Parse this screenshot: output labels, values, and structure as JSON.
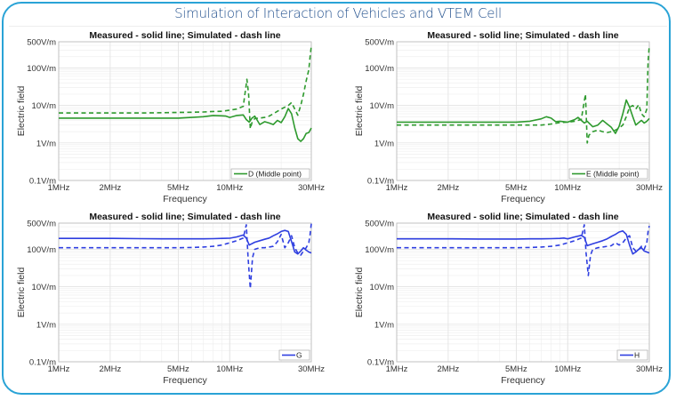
{
  "page": {
    "title": "Simulation of Interaction of Vehicles and VTEM Cell",
    "frame_color": "#2aa3d6",
    "title_color": "#1f4e8c"
  },
  "chart_data": [
    {
      "id": "D",
      "type": "line",
      "title": "Measured - solid line; Simulated - dash line",
      "xlabel": "Frequency",
      "ylabel": "Electric field",
      "xscale": "log",
      "yscale": "log",
      "xlim": [
        1,
        30
      ],
      "ylim": [
        0.1,
        500
      ],
      "xticks": [
        1,
        2,
        5,
        10,
        30
      ],
      "xtick_labels": [
        "1MHz",
        "2MHz",
        "5MHz",
        "10MHz",
        "30MHz"
      ],
      "yticks": [
        0.1,
        1,
        10,
        100,
        500
      ],
      "ytick_labels": [
        "0.1V/m",
        "1V/m",
        "10V/m",
        "100V/m",
        "500V/m"
      ],
      "grid": true,
      "legend": {
        "label": "D (Middle point)",
        "position": "bottom-right"
      },
      "color": "#2e9a2e",
      "series": [
        {
          "name": "Measured",
          "style": "solid",
          "x": [
            1,
            2,
            3,
            4,
            5,
            6,
            7,
            8,
            9,
            9.5,
            10,
            11,
            12,
            12.5,
            13,
            13.5,
            14,
            15,
            16,
            17,
            18,
            19,
            20,
            21,
            22,
            23,
            24,
            25,
            26,
            27,
            28,
            29,
            30
          ],
          "y": [
            4.6,
            4.6,
            4.6,
            4.6,
            4.6,
            4.8,
            5.0,
            5.4,
            5.3,
            5.2,
            4.8,
            5.4,
            5.6,
            4.2,
            3.6,
            4.6,
            5.2,
            3.1,
            3.7,
            3.4,
            3.1,
            4.0,
            3.5,
            5.0,
            8.3,
            6.0,
            2.5,
            1.3,
            1.1,
            1.3,
            1.8,
            1.9,
            2.5
          ]
        },
        {
          "name": "Simulated",
          "style": "dash",
          "x": [
            1,
            2,
            3,
            4,
            5,
            6,
            7,
            8,
            9,
            10,
            11,
            12,
            12.6,
            12.9,
            13.2,
            13.5,
            14,
            15,
            16,
            17,
            18,
            19,
            20,
            21,
            22,
            23,
            24,
            25,
            26,
            27,
            28,
            29,
            29.5,
            30
          ],
          "y": [
            6.3,
            6.3,
            6.3,
            6.4,
            6.5,
            6.6,
            6.7,
            6.9,
            7.0,
            7.5,
            8.0,
            9.5,
            50,
            20,
            2.4,
            3.5,
            4.5,
            4.6,
            4.8,
            5.2,
            6.0,
            7.0,
            8.0,
            9.0,
            10.0,
            12.0,
            8.0,
            5.5,
            10,
            20,
            45,
            90,
            200,
            380
          ]
        }
      ]
    },
    {
      "id": "E",
      "type": "line",
      "title": "Measured - solid line; Simulated - dash line",
      "xlabel": "Frequency",
      "ylabel": "Electric field",
      "xscale": "log",
      "yscale": "log",
      "xlim": [
        1,
        30
      ],
      "ylim": [
        0.1,
        500
      ],
      "xticks": [
        1,
        2,
        5,
        10,
        30
      ],
      "xtick_labels": [
        "1MHz",
        "2MHz",
        "5MHz",
        "10MHz",
        "30MHz"
      ],
      "yticks": [
        0.1,
        1,
        10,
        100,
        500
      ],
      "ytick_labels": [
        "0.1V/m",
        "1V/m",
        "10V/m",
        "100V/m",
        "500V/m"
      ],
      "grid": true,
      "legend": {
        "label": "E (Middle point)",
        "position": "bottom-right"
      },
      "color": "#2e9a2e",
      "series": [
        {
          "name": "Measured",
          "style": "solid",
          "x": [
            1,
            2,
            3,
            4,
            5,
            6,
            7,
            7.5,
            8,
            8.5,
            9,
            10,
            11,
            11.5,
            12,
            12.5,
            13,
            14,
            15,
            16,
            17,
            18,
            19,
            20,
            21,
            22,
            23,
            24,
            25,
            26,
            27,
            28,
            29,
            30
          ],
          "y": [
            3.6,
            3.6,
            3.6,
            3.6,
            3.6,
            3.8,
            4.4,
            5.0,
            4.6,
            3.7,
            3.8,
            3.6,
            4.2,
            4.8,
            4.0,
            3.4,
            3.8,
            2.7,
            3.0,
            4.0,
            3.2,
            2.6,
            1.8,
            2.8,
            6.0,
            14,
            9.0,
            5.0,
            3.0,
            3.5,
            4.0,
            3.4,
            3.8,
            4.5
          ]
        },
        {
          "name": "Simulated",
          "style": "dash",
          "x": [
            1,
            2,
            3,
            4,
            5,
            6,
            7,
            8,
            9,
            10,
            11,
            12,
            12.7,
            13,
            13.3,
            14,
            15,
            16,
            17,
            18,
            19,
            20,
            21,
            22,
            23,
            24,
            25,
            26,
            27,
            28,
            29,
            29.5,
            30
          ],
          "y": [
            3.0,
            3.0,
            3.0,
            3.0,
            3.0,
            3.0,
            3.0,
            3.2,
            3.5,
            3.6,
            3.8,
            4.2,
            20,
            1.0,
            1.6,
            2.0,
            2.2,
            2.0,
            1.9,
            2.0,
            2.2,
            2.5,
            3.0,
            5.0,
            9.0,
            10.0,
            8.0,
            10.5,
            6.0,
            5.0,
            8.0,
            150,
            400
          ]
        }
      ]
    },
    {
      "id": "G",
      "type": "line",
      "title": "Measured - solid line; Simulated - dash line",
      "xlabel": "Frequency",
      "ylabel": "Electric field",
      "xscale": "log",
      "yscale": "log",
      "xlim": [
        1,
        30
      ],
      "ylim": [
        0.1,
        500
      ],
      "xticks": [
        1,
        2,
        5,
        10,
        30
      ],
      "xtick_labels": [
        "1MHz",
        "2MHz",
        "5MHz",
        "10MHz",
        "30MHz"
      ],
      "yticks": [
        0.1,
        1,
        10,
        100,
        500
      ],
      "ytick_labels": [
        "0.1V/m",
        "1V/m",
        "10V/m",
        "100V/m",
        "500V/m"
      ],
      "grid": true,
      "legend": {
        "label": "G",
        "position": "bottom-right"
      },
      "color": "#2f3fe0",
      "series": [
        {
          "name": "Measured",
          "style": "solid",
          "x": [
            1,
            2,
            3,
            4,
            5,
            6,
            7,
            8,
            9,
            10,
            11,
            12,
            12.5,
            13,
            14,
            15,
            16,
            17,
            18,
            19,
            20,
            21,
            22,
            23,
            24,
            25,
            26,
            27,
            28,
            29,
            30
          ],
          "y": [
            195,
            195,
            192,
            190,
            190,
            190,
            190,
            192,
            195,
            198,
            215,
            240,
            200,
            130,
            155,
            170,
            185,
            200,
            230,
            260,
            300,
            320,
            300,
            160,
            85,
            75,
            90,
            110,
            95,
            85,
            80
          ]
        },
        {
          "name": "Simulated",
          "style": "dash",
          "x": [
            1,
            2,
            3,
            4,
            5,
            6,
            7,
            8,
            9,
            10,
            11,
            12,
            12.5,
            12.8,
            13.2,
            13.6,
            14,
            15,
            16,
            17,
            18,
            19,
            20,
            21,
            22,
            23,
            24,
            25,
            26,
            27,
            28,
            29,
            29.5,
            30
          ],
          "y": [
            110,
            110,
            110,
            110,
            110,
            112,
            115,
            120,
            130,
            150,
            170,
            200,
            450,
            60,
            9,
            60,
            100,
            110,
            110,
            115,
            120,
            160,
            250,
            110,
            150,
            230,
            110,
            80,
            70,
            90,
            110,
            150,
            250,
            480
          ]
        }
      ]
    },
    {
      "id": "H",
      "type": "line",
      "title": "Measured - solid line; Simulated - dash line",
      "xlabel": "Frequency",
      "ylabel": "Electric field",
      "xscale": "log",
      "yscale": "log",
      "xlim": [
        1,
        30
      ],
      "ylim": [
        0.1,
        500
      ],
      "xticks": [
        1,
        2,
        5,
        10,
        30
      ],
      "xtick_labels": [
        "1MHz",
        "2MHz",
        "5MHz",
        "10MHz",
        "30MHz"
      ],
      "yticks": [
        0.1,
        1,
        10,
        100,
        500
      ],
      "ytick_labels": [
        "0.1V/m",
        "1V/m",
        "10V/m",
        "100V/m",
        "500V/m"
      ],
      "grid": true,
      "legend": {
        "label": "H",
        "position": "bottom-right"
      },
      "color": "#2f3fe0",
      "series": [
        {
          "name": "Measured",
          "style": "solid",
          "x": [
            1,
            2,
            3,
            4,
            5,
            6,
            7,
            8,
            9,
            9.5,
            10,
            11,
            12,
            12.5,
            13,
            14,
            15,
            16,
            17,
            18,
            19,
            20,
            21,
            22,
            23,
            24,
            25,
            26,
            27,
            28,
            29,
            30
          ],
          "y": [
            190,
            190,
            188,
            188,
            188,
            190,
            190,
            192,
            195,
            200,
            190,
            215,
            235,
            210,
            125,
            140,
            155,
            170,
            190,
            220,
            250,
            290,
            310,
            250,
            130,
            75,
            85,
            100,
            110,
            90,
            85,
            80
          ]
        },
        {
          "name": "Simulated",
          "style": "dash",
          "x": [
            1,
            2,
            3,
            4,
            5,
            6,
            7,
            8,
            9,
            10,
            11,
            12,
            12.5,
            12.8,
            13.2,
            13.6,
            14,
            15,
            16,
            17,
            18,
            19,
            20,
            21,
            22,
            23,
            24,
            25,
            26,
            27,
            28,
            29,
            29.5,
            30
          ],
          "y": [
            110,
            110,
            110,
            110,
            110,
            112,
            115,
            120,
            130,
            150,
            170,
            200,
            450,
            80,
            20,
            70,
            100,
            110,
            115,
            120,
            125,
            150,
            130,
            150,
            200,
            230,
            110,
            90,
            100,
            120,
            100,
            150,
            300,
            420
          ]
        }
      ]
    }
  ]
}
